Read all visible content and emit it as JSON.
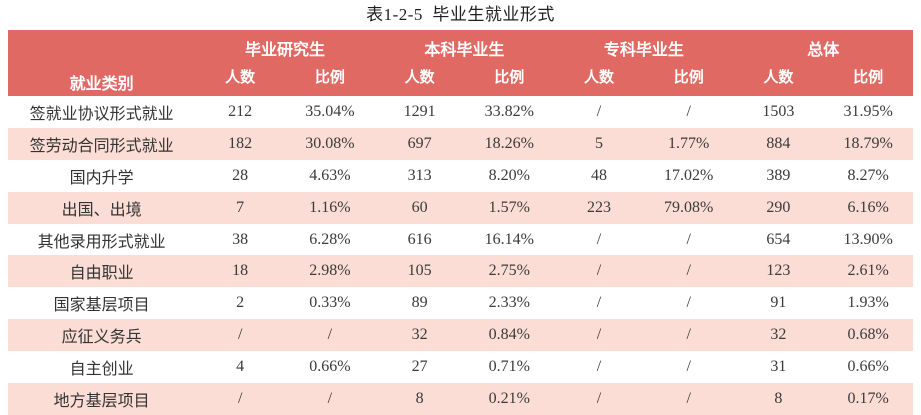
{
  "title": "表1-2-5  毕业生就业形式",
  "colors": {
    "header_bg": "#e06963",
    "header_text": "#ffffff",
    "row_alt_bg": "#fbddd5",
    "body_text": "#3a3a3a"
  },
  "table": {
    "category_header": "就业类别",
    "groups": [
      {
        "label": "毕业研究生"
      },
      {
        "label": "本科毕业生"
      },
      {
        "label": "专科毕业生"
      },
      {
        "label": "总体"
      }
    ],
    "subheaders": [
      "人数",
      "比例"
    ],
    "rows": [
      {
        "category": "签就业协议形式就业",
        "values": [
          "212",
          "35.04%",
          "1291",
          "33.82%",
          "/",
          "/",
          "1503",
          "31.95%"
        ]
      },
      {
        "category": "签劳动合同形式就业",
        "values": [
          "182",
          "30.08%",
          "697",
          "18.26%",
          "5",
          "1.77%",
          "884",
          "18.79%"
        ]
      },
      {
        "category": "国内升学",
        "values": [
          "28",
          "4.63%",
          "313",
          "8.20%",
          "48",
          "17.02%",
          "389",
          "8.27%"
        ]
      },
      {
        "category": "出国、出境",
        "values": [
          "7",
          "1.16%",
          "60",
          "1.57%",
          "223",
          "79.08%",
          "290",
          "6.16%"
        ]
      },
      {
        "category": "其他录用形式就业",
        "values": [
          "38",
          "6.28%",
          "616",
          "16.14%",
          "/",
          "/",
          "654",
          "13.90%"
        ]
      },
      {
        "category": "自由职业",
        "values": [
          "18",
          "2.98%",
          "105",
          "2.75%",
          "/",
          "/",
          "123",
          "2.61%"
        ]
      },
      {
        "category": "国家基层项目",
        "values": [
          "2",
          "0.33%",
          "89",
          "2.33%",
          "/",
          "/",
          "91",
          "1.93%"
        ]
      },
      {
        "category": "应征义务兵",
        "values": [
          "/",
          "/",
          "32",
          "0.84%",
          "/",
          "/",
          "32",
          "0.68%"
        ]
      },
      {
        "category": "自主创业",
        "values": [
          "4",
          "0.66%",
          "27",
          "0.71%",
          "/",
          "/",
          "31",
          "0.66%"
        ]
      },
      {
        "category": "地方基层项目",
        "values": [
          "/",
          "/",
          "8",
          "0.21%",
          "/",
          "/",
          "8",
          "0.17%"
        ]
      }
    ]
  }
}
